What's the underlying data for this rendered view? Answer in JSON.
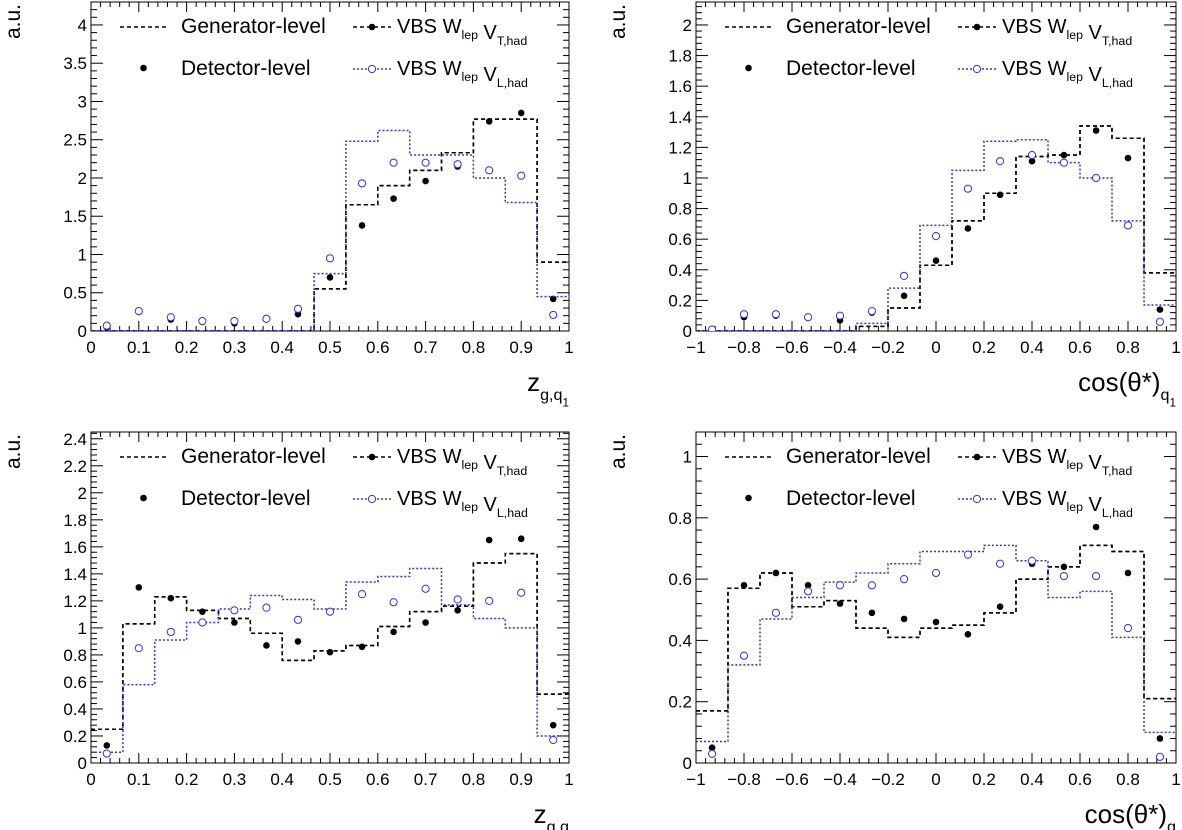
{
  "legend_entries": {
    "gen": "Generator-level",
    "det": "Detector-level",
    "vt": "VBS W_lep V_T,had",
    "vl": "VBS W_lep V_L,had"
  },
  "colors": {
    "generator": "#000000",
    "detector": "#000000",
    "transverse": "#000000",
    "longitudinal": "#3333cc"
  },
  "chart_data": [
    {
      "type": "line",
      "panel": "top-left",
      "xlabel": "z_g,q_1",
      "ylabel": "a.u.",
      "xlim": [
        0,
        1
      ],
      "ylim": [
        0,
        4.3
      ],
      "xticks": [
        "0",
        "0.1",
        "0.2",
        "0.3",
        "0.4",
        "0.5",
        "0.6",
        "0.7",
        "0.8",
        "0.9",
        "1"
      ],
      "yticks": [
        "0",
        "0.5",
        "1",
        "1.5",
        "2",
        "2.5",
        "3",
        "3.5",
        "4"
      ],
      "bin_edges": [
        0,
        0.0667,
        0.1333,
        0.2,
        0.2667,
        0.3333,
        0.4,
        0.4667,
        0.5333,
        0.6,
        0.6667,
        0.7333,
        0.8,
        0.8667,
        0.9333,
        1.0
      ],
      "x": [
        0.033,
        0.1,
        0.167,
        0.233,
        0.3,
        0.367,
        0.433,
        0.5,
        0.567,
        0.633,
        0.7,
        0.767,
        0.833,
        0.9,
        0.967
      ],
      "series": [
        {
          "name": "Generator-level",
          "style": "step-dashed",
          "color": "#000000",
          "values": [
            0,
            0,
            0,
            0,
            0,
            0,
            0,
            0.55,
            1.65,
            1.9,
            2.1,
            2.33,
            2.77,
            2.77,
            0.9
          ]
        },
        {
          "name": "Detector-level",
          "style": "dot-filled",
          "color": "#000000",
          "values": [
            0.05,
            0.25,
            0.15,
            0.12,
            0.1,
            0.15,
            0.22,
            0.7,
            1.38,
            1.73,
            1.96,
            2.15,
            2.74,
            2.85,
            0.42
          ]
        },
        {
          "name": "VBS W_lep V_T,had",
          "style": "step-dashed",
          "color": "#000000",
          "values": [
            0,
            0,
            0,
            0,
            0,
            0,
            0,
            0.55,
            1.65,
            1.9,
            2.1,
            2.33,
            2.77,
            2.77,
            0.9
          ]
        },
        {
          "name": "VBS W_lep V_L,had",
          "style": "step-dotted",
          "color": "#3333cc",
          "values": [
            0,
            0,
            0,
            0,
            0,
            0,
            0,
            0.75,
            2.48,
            2.62,
            2.3,
            2.3,
            2.0,
            1.68,
            0.45
          ]
        },
        {
          "name": "VBS W_lep V_L,had points",
          "style": "dot-open",
          "color": "#3333cc",
          "values": [
            0.07,
            0.26,
            0.18,
            0.13,
            0.13,
            0.16,
            0.29,
            0.95,
            1.93,
            2.2,
            2.2,
            2.18,
            2.1,
            2.03,
            0.21
          ]
        }
      ]
    },
    {
      "type": "line",
      "panel": "top-right",
      "xlabel": "cos(θ*)_q_1",
      "ylabel": "a.u.",
      "xlim": [
        -1,
        1
      ],
      "ylim": [
        0,
        2.15
      ],
      "xticks": [
        "−1",
        "−0.8",
        "−0.6",
        "−0.4",
        "−0.2",
        "0",
        "0.2",
        "0.4",
        "0.6",
        "0.8",
        "1"
      ],
      "yticks": [
        "0",
        "0.2",
        "0.4",
        "0.6",
        "0.8",
        "1",
        "1.2",
        "1.4",
        "1.6",
        "1.8",
        "2"
      ],
      "bin_edges": [
        -1,
        -0.8667,
        -0.7333,
        -0.6,
        -0.4667,
        -0.3333,
        -0.2,
        -0.0667,
        0.0667,
        0.2,
        0.3333,
        0.4667,
        0.6,
        0.7333,
        0.8667,
        1.0
      ],
      "x": [
        -0.933,
        -0.8,
        -0.667,
        -0.533,
        -0.4,
        -0.267,
        -0.133,
        0.0,
        0.133,
        0.267,
        0.4,
        0.533,
        0.667,
        0.8,
        0.933
      ],
      "series": [
        {
          "name": "Generator-level",
          "style": "step-dashed",
          "color": "#000000",
          "values": [
            0,
            0,
            0,
            0,
            0,
            0.03,
            0.15,
            0.43,
            0.72,
            0.9,
            1.14,
            1.15,
            1.34,
            1.26,
            0.38
          ]
        },
        {
          "name": "Detector-level",
          "style": "dot-filled",
          "color": "#000000",
          "values": [
            0.0,
            0.09,
            0.1,
            0.09,
            0.07,
            0.12,
            0.23,
            0.46,
            0.67,
            0.89,
            1.11,
            1.15,
            1.31,
            1.13,
            0.14
          ]
        },
        {
          "name": "VBS W_lep V_T,had",
          "style": "step-dashed",
          "color": "#000000",
          "values": [
            0,
            0,
            0,
            0,
            0,
            0.03,
            0.15,
            0.43,
            0.72,
            0.9,
            1.14,
            1.15,
            1.34,
            1.26,
            0.38
          ]
        },
        {
          "name": "VBS W_lep V_L,had",
          "style": "step-dotted",
          "color": "#3333cc",
          "values": [
            0,
            0,
            0,
            0,
            0,
            0.05,
            0.28,
            0.69,
            1.05,
            1.24,
            1.25,
            1.1,
            1.0,
            0.72,
            0.17
          ]
        },
        {
          "name": "VBS W_lep V_L,had points",
          "style": "dot-open",
          "color": "#3333cc",
          "values": [
            0.01,
            0.11,
            0.11,
            0.09,
            0.1,
            0.13,
            0.36,
            0.62,
            0.93,
            1.11,
            1.15,
            1.1,
            1.0,
            0.69,
            0.06
          ]
        }
      ]
    },
    {
      "type": "line",
      "panel": "bottom-left",
      "xlabel": "z_g,q",
      "ylabel": "a.u.",
      "xlim": [
        0,
        1
      ],
      "ylim": [
        0,
        2.45
      ],
      "xticks": [
        "0",
        "0.1",
        "0.2",
        "0.3",
        "0.4",
        "0.5",
        "0.6",
        "0.7",
        "0.8",
        "0.9",
        "1"
      ],
      "yticks": [
        "0",
        "0.2",
        "0.4",
        "0.6",
        "0.8",
        "1",
        "1.2",
        "1.4",
        "1.6",
        "1.8",
        "2",
        "2.2",
        "2.4"
      ],
      "bin_edges": [
        0,
        0.0667,
        0.1333,
        0.2,
        0.2667,
        0.3333,
        0.4,
        0.4667,
        0.5333,
        0.6,
        0.6667,
        0.7333,
        0.8,
        0.8667,
        0.9333,
        1.0
      ],
      "x": [
        0.033,
        0.1,
        0.167,
        0.233,
        0.3,
        0.367,
        0.433,
        0.5,
        0.567,
        0.633,
        0.7,
        0.767,
        0.833,
        0.9,
        0.967
      ],
      "series": [
        {
          "name": "Generator-level",
          "style": "step-dashed",
          "color": "#000000",
          "values": [
            0.25,
            1.03,
            1.23,
            1.13,
            1.07,
            0.96,
            0.76,
            0.83,
            0.87,
            1.01,
            1.12,
            1.16,
            1.48,
            1.55,
            0.51
          ]
        },
        {
          "name": "Detector-level",
          "style": "dot-filled",
          "color": "#000000",
          "values": [
            0.13,
            1.3,
            1.22,
            1.12,
            1.04,
            0.87,
            0.9,
            0.82,
            0.86,
            0.97,
            1.04,
            1.13,
            1.65,
            1.66,
            0.28
          ]
        },
        {
          "name": "VBS W_lep V_T,had",
          "style": "step-dashed",
          "color": "#000000",
          "values": [
            0.25,
            1.03,
            1.23,
            1.13,
            1.07,
            0.96,
            0.76,
            0.83,
            0.87,
            1.01,
            1.12,
            1.16,
            1.48,
            1.55,
            0.51
          ]
        },
        {
          "name": "VBS W_lep V_L,had",
          "style": "step-dotted",
          "color": "#3333cc",
          "values": [
            0.08,
            0.58,
            0.91,
            1.04,
            1.14,
            1.24,
            1.21,
            1.14,
            1.34,
            1.38,
            1.44,
            1.17,
            1.07,
            1.0,
            0.2
          ]
        },
        {
          "name": "VBS W_lep V_L,had points",
          "style": "dot-open",
          "color": "#3333cc",
          "values": [
            0.07,
            0.85,
            0.97,
            1.04,
            1.13,
            1.15,
            1.06,
            1.12,
            1.25,
            1.19,
            1.29,
            1.21,
            1.2,
            1.26,
            0.17
          ]
        }
      ]
    },
    {
      "type": "line",
      "panel": "bottom-right",
      "xlabel": "cos(θ*)_q",
      "ylabel": "a.u.",
      "xlim": [
        -1,
        1
      ],
      "ylim": [
        0,
        1.08
      ],
      "xticks": [
        "−1",
        "−0.8",
        "−0.6",
        "−0.4",
        "−0.2",
        "0",
        "0.2",
        "0.4",
        "0.6",
        "0.8",
        "1"
      ],
      "yticks": [
        "0",
        "0.2",
        "0.4",
        "0.6",
        "0.8",
        "1"
      ],
      "bin_edges": [
        -1,
        -0.8667,
        -0.7333,
        -0.6,
        -0.4667,
        -0.3333,
        -0.2,
        -0.0667,
        0.0667,
        0.2,
        0.3333,
        0.4667,
        0.6,
        0.7333,
        0.8667,
        1.0
      ],
      "x": [
        -0.933,
        -0.8,
        -0.667,
        -0.533,
        -0.4,
        -0.267,
        -0.133,
        0.0,
        0.133,
        0.267,
        0.4,
        0.533,
        0.667,
        0.8,
        0.933
      ],
      "series": [
        {
          "name": "Generator-level",
          "style": "step-dashed",
          "color": "#000000",
          "values": [
            0.17,
            0.57,
            0.62,
            0.51,
            0.53,
            0.44,
            0.41,
            0.44,
            0.45,
            0.49,
            0.6,
            0.64,
            0.71,
            0.69,
            0.21
          ]
        },
        {
          "name": "Detector-level",
          "style": "dot-filled",
          "color": "#000000",
          "values": [
            0.05,
            0.58,
            0.62,
            0.58,
            0.52,
            0.49,
            0.47,
            0.46,
            0.42,
            0.51,
            0.65,
            0.64,
            0.77,
            0.62,
            0.08
          ]
        },
        {
          "name": "VBS W_lep V_T,had",
          "style": "step-dashed",
          "color": "#000000",
          "values": [
            0.17,
            0.57,
            0.62,
            0.51,
            0.53,
            0.44,
            0.41,
            0.44,
            0.45,
            0.49,
            0.6,
            0.64,
            0.71,
            0.69,
            0.21
          ]
        },
        {
          "name": "VBS W_lep V_L,had",
          "style": "step-dotted",
          "color": "#3333cc",
          "values": [
            0.07,
            0.32,
            0.47,
            0.54,
            0.59,
            0.62,
            0.65,
            0.69,
            0.69,
            0.71,
            0.66,
            0.54,
            0.56,
            0.41,
            0.1
          ]
        },
        {
          "name": "VBS W_lep V_L,had points",
          "style": "dot-open",
          "color": "#3333cc",
          "values": [
            0.03,
            0.35,
            0.49,
            0.56,
            0.58,
            0.58,
            0.6,
            0.62,
            0.68,
            0.65,
            0.66,
            0.61,
            0.61,
            0.44,
            0.02
          ]
        }
      ]
    }
  ]
}
